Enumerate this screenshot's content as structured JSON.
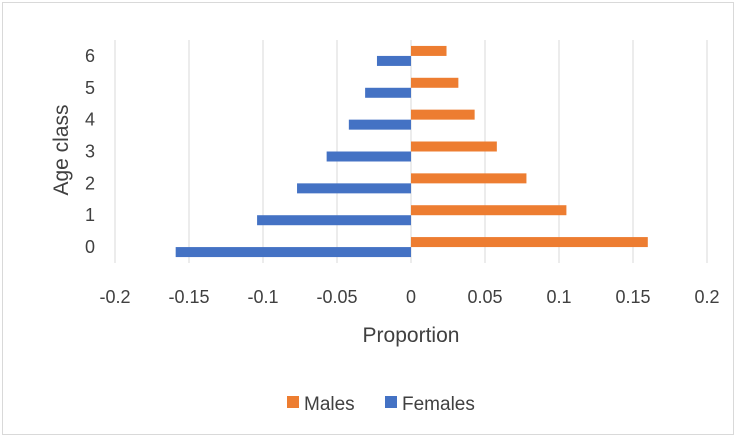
{
  "chart_data": {
    "type": "bar",
    "orientation": "horizontal",
    "title": "",
    "xlabel": "Proportion",
    "ylabel": "Age class",
    "categories": [
      "0",
      "1",
      "2",
      "3",
      "4",
      "5",
      "6"
    ],
    "xlim": [
      -0.2,
      0.2
    ],
    "xticks": [
      "-0.2",
      "-0.15",
      "-0.1",
      "-0.05",
      "0",
      "0.05",
      "0.1",
      "0.15",
      "0.2"
    ],
    "xtick_values": [
      -0.2,
      -0.15,
      -0.1,
      -0.05,
      0,
      0.05,
      0.1,
      0.15,
      0.2
    ],
    "grid": true,
    "legend_position": "bottom",
    "series": [
      {
        "name": "Males",
        "color": "#ed7d31",
        "values": [
          0.16,
          0.105,
          0.078,
          0.058,
          0.043,
          0.032,
          0.024
        ]
      },
      {
        "name": "Females",
        "color": "#4472c4",
        "values": [
          -0.159,
          -0.104,
          -0.077,
          -0.057,
          -0.042,
          -0.031,
          -0.023
        ]
      }
    ]
  }
}
